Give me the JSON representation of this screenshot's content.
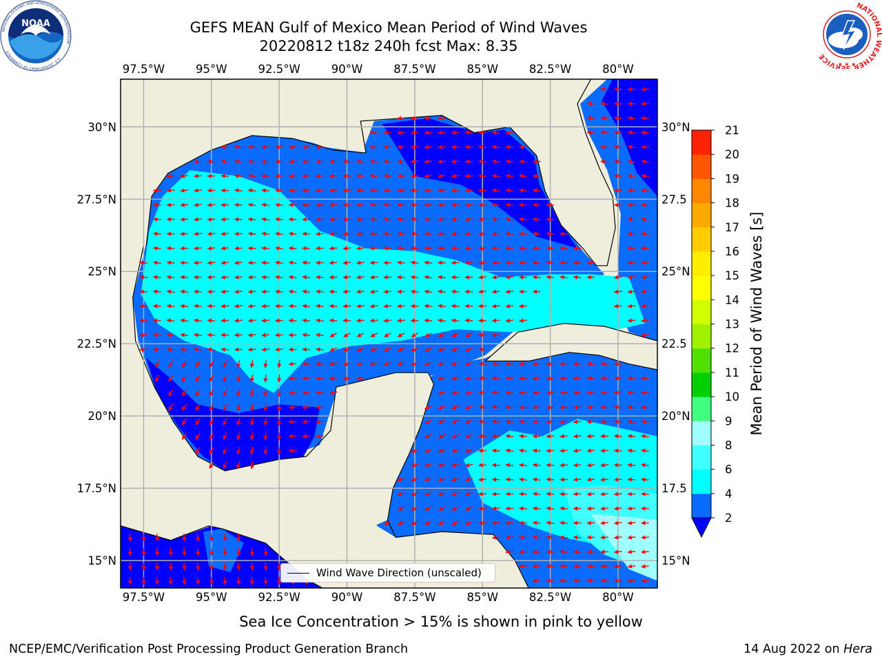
{
  "header": {
    "title_line1": "GEFS MEAN Gulf of Mexico Mean Period of Wind Waves",
    "title_line2": "20220812 t18z 240h fcst   Max: 8.35"
  },
  "logos": {
    "left": {
      "name": "NOAA",
      "ring_text": "NATIONAL OCEANIC AND ATMOSPHERIC ADMINISTRATION",
      "bottom_text": "U.S. DEPARTMENT OF COMMERCE"
    },
    "right": {
      "ring_text": "NATIONAL WEATHER SERVICE"
    }
  },
  "map": {
    "lon_range": [
      -98.35,
      -78.55
    ],
    "lat_range": [
      14.05,
      31.65
    ],
    "lon_ticks": [
      "97.5°W",
      "95°W",
      "92.5°W",
      "90°W",
      "87.5°W",
      "85°W",
      "82.5°W",
      "80°W"
    ],
    "lat_ticks_left": [
      "30°N",
      "27.5°N",
      "25°N",
      "22.5°N",
      "20°N",
      "17.5°N",
      "15°N"
    ],
    "lat_ticks_right": [
      "30°N",
      "27.5",
      "25°N",
      "22.5",
      "20°N",
      "17.5",
      "15°N"
    ],
    "land_color": "#efeddc",
    "arrow_color": "#ff0000",
    "grid_color": "#b0b0b0",
    "legend": "Wind Wave Direction (unscaled)"
  },
  "colorbar": {
    "label": "Mean Period of Wind Waves [s]",
    "tick_labels": [
      "2",
      "4",
      "6",
      "8",
      "9",
      "10",
      "11",
      "12",
      "13",
      "14",
      "15",
      "16",
      "17",
      "18",
      "19",
      "20",
      "21"
    ],
    "colors": [
      "#0a6bff",
      "#00ffff",
      "#40ffff",
      "#a0ffff",
      "#40ff80",
      "#00d000",
      "#50e000",
      "#a0f000",
      "#d0ff00",
      "#ffff00",
      "#ffee00",
      "#ffcc00",
      "#ffaa00",
      "#ff8800",
      "#ff5500",
      "#ff2200"
    ],
    "under_color": "#0000ff"
  },
  "note": "Sea Ice Concentration > 15% is shown in pink to yellow",
  "footer": {
    "left": "NCEP/EMC/Verification Post Processing Product Generation Branch",
    "date": "14 Aug 2022 on ",
    "machine": "Hera"
  }
}
